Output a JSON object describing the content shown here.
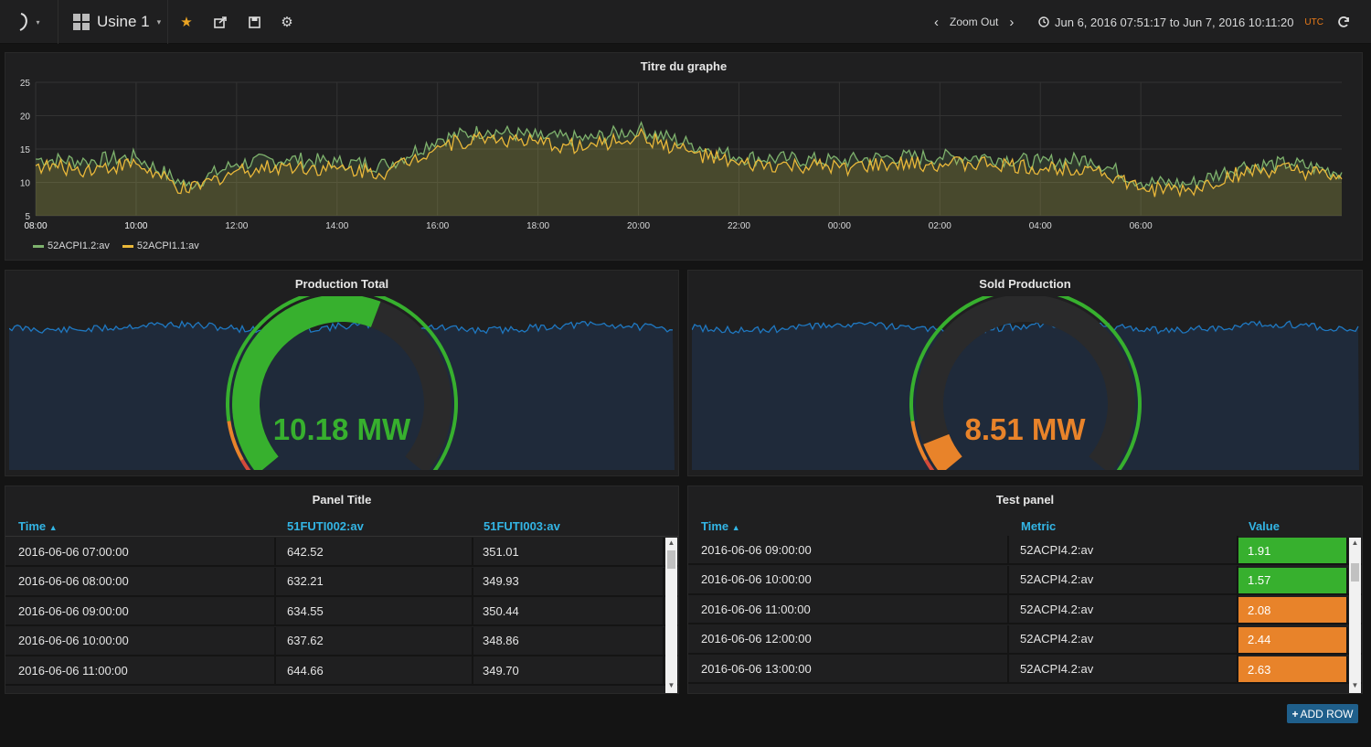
{
  "navbar": {
    "dashboard_name": "Usine 1",
    "zoom_out_label": "Zoom Out",
    "time_range": "Jun 6, 2016 07:51:17 to Jun 7, 2016 10:11:20",
    "timezone": "UTC",
    "icons": [
      "grafana-logo-icon",
      "dashboard-grid-icon",
      "star-icon",
      "share-icon",
      "save-icon",
      "gear-icon",
      "chevron-left-icon",
      "chevron-right-icon",
      "clock-icon",
      "refresh-icon"
    ]
  },
  "graph_panel": {
    "title": "Titre du graphe",
    "legend": [
      {
        "name": "52ACPI1.2:av",
        "color": "#7eb26d"
      },
      {
        "name": "52ACPI1.1:av",
        "color": "#eab839"
      }
    ]
  },
  "chart_data": {
    "type": "line",
    "title": "Titre du graphe",
    "xlabel": "",
    "ylabel": "",
    "ylim": [
      5,
      25
    ],
    "yticks": [
      5,
      10,
      15,
      20,
      25
    ],
    "x": [
      "08:00",
      "09:00",
      "10:00",
      "11:00",
      "12:00",
      "13:00",
      "14:00",
      "15:00",
      "16:00",
      "17:00",
      "18:00",
      "19:00",
      "20:00",
      "21:00",
      "22:00",
      "23:00",
      "00:00",
      "01:00",
      "02:00",
      "03:00",
      "04:00",
      "05:00",
      "06:00",
      "07:00",
      "08:00",
      "09:00",
      "10:00"
    ],
    "xticks": [
      "08:00",
      "10:00",
      "12:00",
      "14:00",
      "16:00",
      "18:00",
      "20:00",
      "22:00",
      "00:00",
      "02:00",
      "04:00",
      "06:00",
      "08:00",
      "10:00"
    ],
    "grid": true,
    "legend_position": "bottom-left",
    "series": [
      {
        "name": "52ACPI1.2:av",
        "color": "#7eb26d",
        "values": [
          13.5,
          13.2,
          13.8,
          9.5,
          12.8,
          13.5,
          13.0,
          12.6,
          16.5,
          17.8,
          16.8,
          16.5,
          18.0,
          15.8,
          13.8,
          13.5,
          13.2,
          13.8,
          13.8,
          13.8,
          13.0,
          13.5,
          10.0,
          9.8,
          12.5,
          12.8,
          11.5
        ]
      },
      {
        "name": "52ACPI1.1:av",
        "color": "#eab839",
        "values": [
          12.5,
          12.0,
          12.8,
          8.6,
          11.8,
          12.5,
          12.0,
          11.6,
          15.5,
          16.8,
          15.8,
          15.3,
          17.0,
          14.6,
          12.6,
          12.4,
          12.2,
          12.6,
          12.8,
          12.8,
          12.0,
          12.4,
          9.0,
          8.8,
          11.5,
          11.8,
          10.5
        ]
      }
    ]
  },
  "gauge_panels": [
    {
      "title": "Production Total",
      "value": "10.18 MW",
      "value_color": "#37b02e",
      "fill_fraction": 0.58
    },
    {
      "title": "Sold Production",
      "value": "8.51 MW",
      "value_color": "#e8832a",
      "fill_fraction": 0.07
    }
  ],
  "table_panels": [
    {
      "title": "Panel Title",
      "columns": [
        "Time",
        "51FUTI002:av",
        "51FUTI003:av"
      ],
      "rows": [
        [
          "2016-06-06 07:00:00",
          "642.52",
          "351.01"
        ],
        [
          "2016-06-06 08:00:00",
          "632.21",
          "349.93"
        ],
        [
          "2016-06-06 09:00:00",
          "634.55",
          "350.44"
        ],
        [
          "2016-06-06 10:00:00",
          "637.62",
          "348.86"
        ],
        [
          "2016-06-06 11:00:00",
          "644.66",
          "349.70"
        ]
      ]
    },
    {
      "title": "Test panel",
      "columns": [
        "Time",
        "Metric",
        "Value"
      ],
      "rows": [
        [
          "2016-06-06 09:00:00",
          "52ACPI4.2:av",
          "1.91"
        ],
        [
          "2016-06-06 10:00:00",
          "52ACPI4.2:av",
          "1.57"
        ],
        [
          "2016-06-06 11:00:00",
          "52ACPI4.2:av",
          "2.08"
        ],
        [
          "2016-06-06 12:00:00",
          "52ACPI4.2:av",
          "2.44"
        ],
        [
          "2016-06-06 13:00:00",
          "52ACPI4.2:av",
          "2.63"
        ]
      ],
      "value_colors": [
        "#37b02e",
        "#37b02e",
        "#e8832a",
        "#e8832a",
        "#e8832a"
      ]
    }
  ],
  "add_row_label": "ADD ROW"
}
